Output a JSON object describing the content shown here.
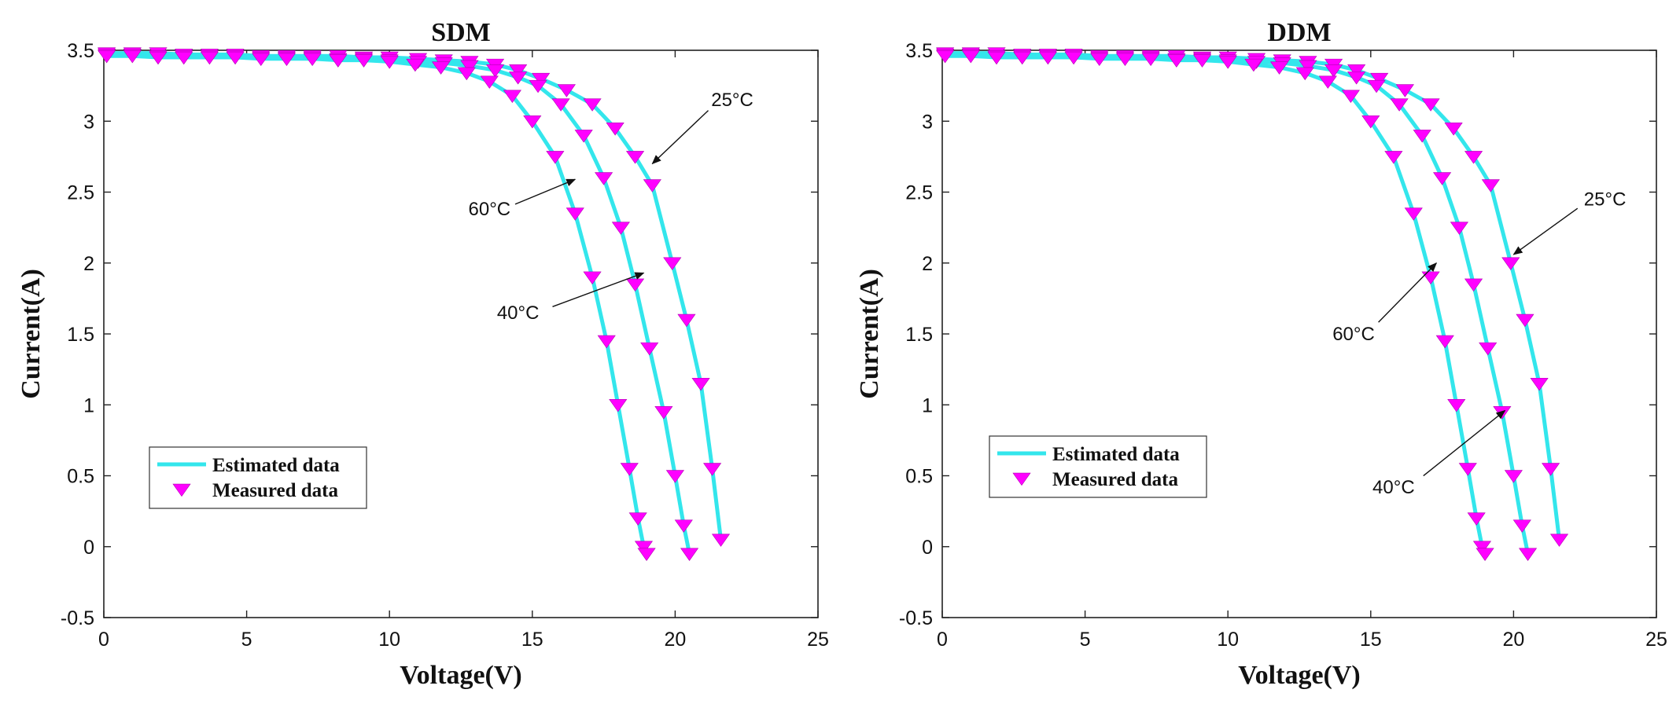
{
  "chart_data": [
    {
      "type": "line",
      "title": "SDM",
      "xlabel": "Voltage(V)",
      "ylabel": "Current(A)",
      "xlim": [
        0,
        25
      ],
      "ylim": [
        -0.5,
        3.5
      ],
      "xticks": [
        0,
        5,
        10,
        15,
        20,
        25
      ],
      "yticks": [
        -0.5,
        0,
        0.5,
        1,
        1.5,
        2,
        2.5,
        3,
        3.5
      ],
      "ytick_labels": [
        "-0.5",
        "0",
        "0.5",
        "1",
        "1.5",
        "2",
        "2.5",
        "3",
        "3.5"
      ],
      "legend": [
        "Estimated data",
        "Measured data"
      ],
      "legend_position": "lower-left",
      "series": [
        {
          "name": "25°C",
          "line_color": "#33e6ec",
          "marker_color": "#ff00ff",
          "x": [
            0.1,
            1.0,
            1.9,
            2.8,
            3.7,
            4.6,
            5.5,
            6.4,
            7.3,
            8.2,
            9.1,
            10.0,
            11.0,
            11.9,
            12.8,
            13.7,
            14.5,
            15.3,
            16.2,
            17.1,
            17.9,
            18.6,
            19.2,
            19.9,
            20.4,
            20.9,
            21.3,
            21.6
          ],
          "y": [
            3.48,
            3.48,
            3.48,
            3.47,
            3.47,
            3.47,
            3.46,
            3.46,
            3.46,
            3.46,
            3.45,
            3.45,
            3.44,
            3.43,
            3.42,
            3.4,
            3.36,
            3.3,
            3.22,
            3.12,
            2.95,
            2.75,
            2.55,
            2.0,
            1.6,
            1.15,
            0.55,
            0.05
          ]
        },
        {
          "name": "40°C",
          "line_color": "#33e6ec",
          "marker_color": "#ff00ff",
          "x": [
            0.1,
            1.0,
            1.9,
            2.8,
            3.7,
            4.6,
            5.5,
            6.4,
            7.3,
            8.2,
            9.1,
            10.0,
            11.0,
            11.9,
            12.8,
            13.7,
            14.5,
            15.2,
            16.0,
            16.8,
            17.5,
            18.1,
            18.6,
            19.1,
            19.6,
            20.0,
            20.3,
            20.5
          ],
          "y": [
            3.47,
            3.47,
            3.46,
            3.46,
            3.46,
            3.46,
            3.45,
            3.45,
            3.45,
            3.44,
            3.44,
            3.43,
            3.42,
            3.41,
            3.39,
            3.36,
            3.31,
            3.25,
            3.12,
            2.9,
            2.6,
            2.25,
            1.85,
            1.4,
            0.95,
            0.5,
            0.15,
            -0.05
          ]
        },
        {
          "name": "60°C",
          "line_color": "#33e6ec",
          "marker_color": "#ff00ff",
          "x": [
            0.1,
            1.0,
            1.9,
            2.8,
            3.7,
            4.6,
            5.5,
            6.4,
            7.3,
            8.2,
            9.1,
            10.0,
            10.9,
            11.8,
            12.7,
            13.5,
            14.3,
            15.0,
            15.8,
            16.5,
            17.1,
            17.6,
            18.0,
            18.4,
            18.7,
            18.9,
            19.0
          ],
          "y": [
            3.46,
            3.46,
            3.45,
            3.45,
            3.45,
            3.45,
            3.44,
            3.44,
            3.44,
            3.43,
            3.43,
            3.42,
            3.4,
            3.38,
            3.34,
            3.28,
            3.18,
            3.0,
            2.75,
            2.35,
            1.9,
            1.45,
            1.0,
            0.55,
            0.2,
            0.0,
            -0.05
          ]
        }
      ],
      "annotations": [
        {
          "text": "25°C",
          "text_at": [
            22.0,
            3.15
          ],
          "arrow_to": [
            19.2,
            2.7
          ]
        },
        {
          "text": "60°C",
          "text_at": [
            13.5,
            2.38
          ],
          "arrow_to": [
            16.5,
            2.59
          ]
        },
        {
          "text": "40°C",
          "text_at": [
            14.5,
            1.65
          ],
          "arrow_to": [
            18.9,
            1.93
          ]
        }
      ]
    },
    {
      "type": "line",
      "title": "DDM",
      "xlabel": "Voltage(V)",
      "ylabel": "Current(A)",
      "xlim": [
        0,
        25
      ],
      "ylim": [
        -0.5,
        3.5
      ],
      "xticks": [
        0,
        5,
        10,
        15,
        20,
        25
      ],
      "yticks": [
        -0.5,
        0,
        0.5,
        1,
        1.5,
        2,
        2.5,
        3,
        3.5
      ],
      "ytick_labels": [
        "-0.5",
        "0",
        "0.5",
        "1",
        "1.5",
        "2",
        "2.5",
        "3",
        "3.5"
      ],
      "legend": [
        "Estimated data",
        "Measured data"
      ],
      "legend_position": "lower-left",
      "series": [
        {
          "name": "25°C",
          "line_color": "#33e6ec",
          "marker_color": "#ff00ff",
          "x": [
            0.1,
            1.0,
            1.9,
            2.8,
            3.7,
            4.6,
            5.5,
            6.4,
            7.3,
            8.2,
            9.1,
            10.0,
            11.0,
            11.9,
            12.8,
            13.7,
            14.5,
            15.3,
            16.2,
            17.1,
            17.9,
            18.6,
            19.2,
            19.9,
            20.4,
            20.9,
            21.3,
            21.6
          ],
          "y": [
            3.48,
            3.48,
            3.48,
            3.47,
            3.47,
            3.47,
            3.46,
            3.46,
            3.46,
            3.46,
            3.45,
            3.45,
            3.44,
            3.43,
            3.42,
            3.4,
            3.36,
            3.3,
            3.22,
            3.12,
            2.95,
            2.75,
            2.55,
            2.0,
            1.6,
            1.15,
            0.55,
            0.05
          ]
        },
        {
          "name": "40°C",
          "line_color": "#33e6ec",
          "marker_color": "#ff00ff",
          "x": [
            0.1,
            1.0,
            1.9,
            2.8,
            3.7,
            4.6,
            5.5,
            6.4,
            7.3,
            8.2,
            9.1,
            10.0,
            11.0,
            11.9,
            12.8,
            13.7,
            14.5,
            15.2,
            16.0,
            16.8,
            17.5,
            18.1,
            18.6,
            19.1,
            19.6,
            20.0,
            20.3,
            20.5
          ],
          "y": [
            3.47,
            3.47,
            3.46,
            3.46,
            3.46,
            3.46,
            3.45,
            3.45,
            3.45,
            3.44,
            3.44,
            3.43,
            3.42,
            3.41,
            3.39,
            3.36,
            3.31,
            3.25,
            3.12,
            2.9,
            2.6,
            2.25,
            1.85,
            1.4,
            0.95,
            0.5,
            0.15,
            -0.05
          ]
        },
        {
          "name": "60°C",
          "line_color": "#33e6ec",
          "marker_color": "#ff00ff",
          "x": [
            0.1,
            1.0,
            1.9,
            2.8,
            3.7,
            4.6,
            5.5,
            6.4,
            7.3,
            8.2,
            9.1,
            10.0,
            10.9,
            11.8,
            12.7,
            13.5,
            14.3,
            15.0,
            15.8,
            16.5,
            17.1,
            17.6,
            18.0,
            18.4,
            18.7,
            18.9,
            19.0
          ],
          "y": [
            3.46,
            3.46,
            3.45,
            3.45,
            3.45,
            3.45,
            3.44,
            3.44,
            3.44,
            3.43,
            3.43,
            3.42,
            3.4,
            3.38,
            3.34,
            3.28,
            3.18,
            3.0,
            2.75,
            2.35,
            1.9,
            1.45,
            1.0,
            0.55,
            0.2,
            0.0,
            -0.05
          ]
        }
      ],
      "annotations": [
        {
          "text": "25°C",
          "text_at": [
            23.2,
            2.45
          ],
          "arrow_to": [
            20.0,
            2.06
          ]
        },
        {
          "text": "60°C",
          "text_at": [
            14.4,
            1.5
          ],
          "arrow_to": [
            17.3,
            2.0
          ]
        },
        {
          "text": "40°C",
          "text_at": [
            15.8,
            0.42
          ],
          "arrow_to": [
            19.7,
            0.96
          ]
        }
      ]
    }
  ]
}
